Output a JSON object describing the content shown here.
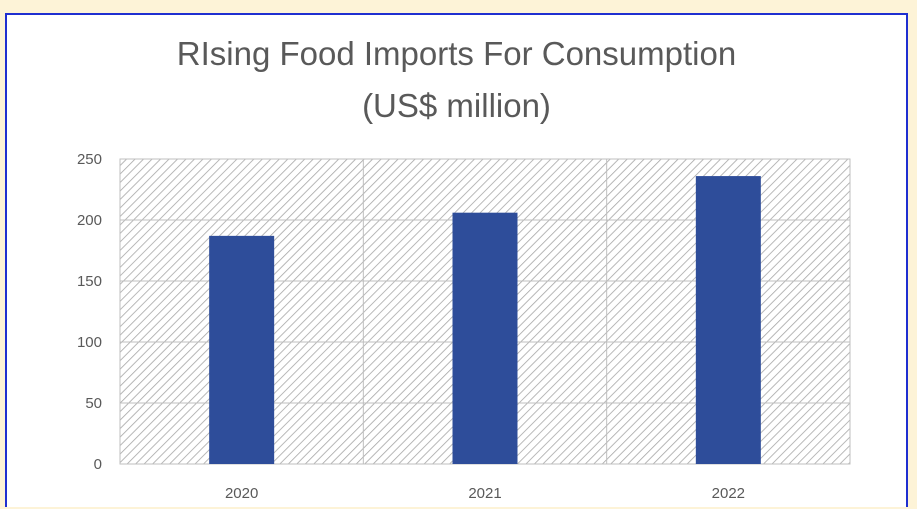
{
  "chart_data": {
    "type": "bar",
    "title": "RIsing Food Imports For Consumption",
    "subtitle": "(US$ million)",
    "categories": [
      "2020",
      "2021",
      "2022"
    ],
    "values": [
      187,
      206,
      236
    ],
    "ylim": [
      0,
      250
    ],
    "yticks": [
      0,
      50,
      100,
      150,
      200,
      250
    ],
    "grid": true,
    "bar_color": "#2e4d9a",
    "plot_background": "hatched"
  },
  "colors": {
    "frame_border": "#1f2fd0",
    "page_background": "#fdf3d7",
    "text": "#595959"
  }
}
